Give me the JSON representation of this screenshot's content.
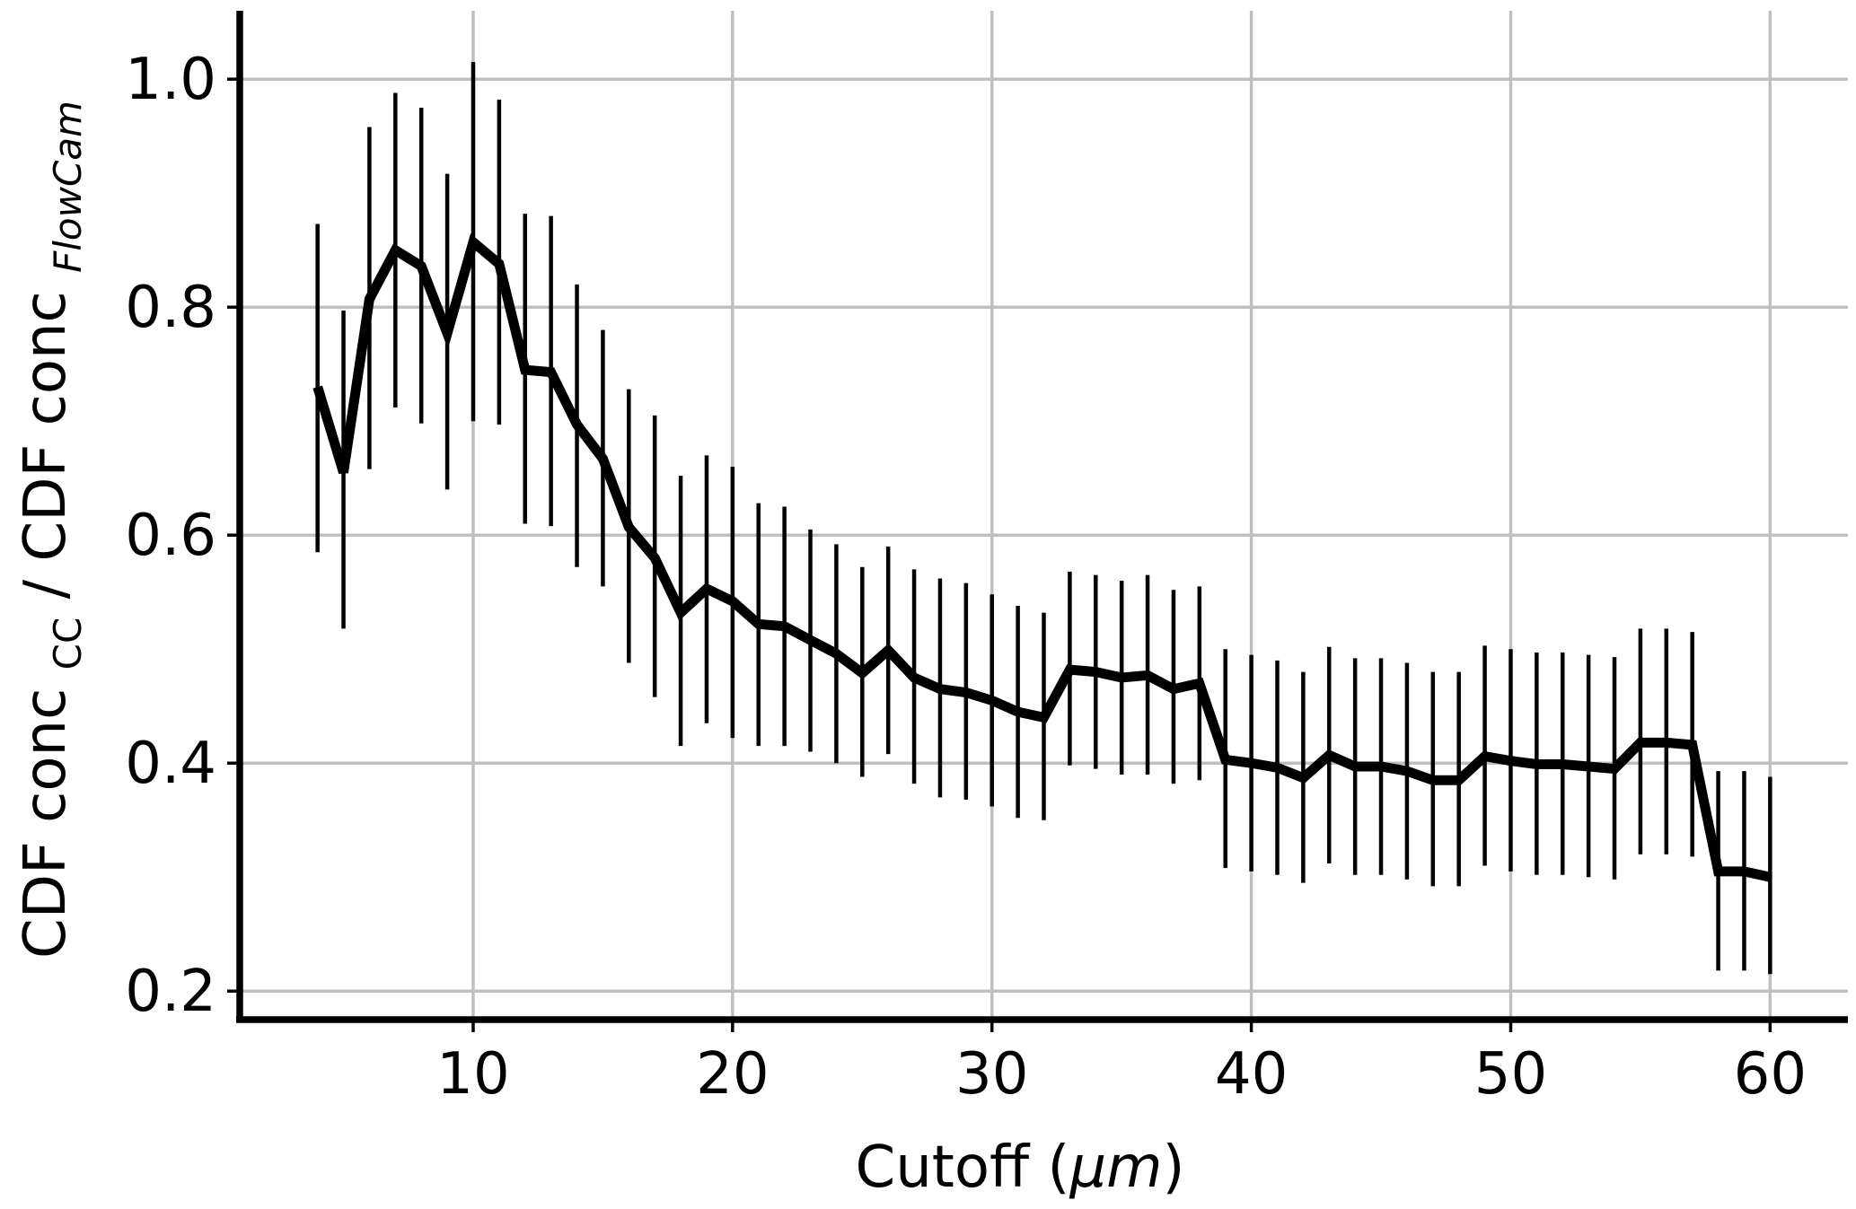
{
  "chart_data": {
    "type": "line",
    "title": "",
    "xlabel": {
      "text": "Cutoff (",
      "unit": "μm",
      "close": ")"
    },
    "ylabel": {
      "part1": "CDF conc ",
      "sub1": "CC",
      "part2": " / CDF conc ",
      "sub2": "FlowCam"
    },
    "xlim": [
      1,
      63
    ],
    "ylim": [
      0.175,
      1.06
    ],
    "xticks": [
      10,
      20,
      30,
      40,
      50,
      60
    ],
    "xtick_labels": [
      "10",
      "20",
      "30",
      "40",
      "50",
      "60"
    ],
    "yticks": [
      0.2,
      0.4,
      0.6,
      0.8,
      1.0
    ],
    "ytick_labels": [
      "0.2",
      "0.4",
      "0.6",
      "0.8",
      "1.0"
    ],
    "grid": true,
    "legend": "none",
    "series": [
      {
        "x": [
          4,
          5,
          6,
          7,
          8,
          9,
          10,
          11,
          12,
          13,
          14,
          15,
          16,
          17,
          18,
          19,
          20,
          21,
          22,
          23,
          24,
          25,
          26,
          27,
          28,
          29,
          30,
          31,
          32,
          33,
          34,
          35,
          36,
          37,
          38,
          39,
          40,
          41,
          42,
          43,
          44,
          45,
          46,
          47,
          48,
          49,
          50,
          51,
          52,
          53,
          54,
          55,
          56,
          57,
          58,
          59,
          60
        ],
        "y": [
          0.73,
          0.655,
          0.807,
          0.85,
          0.836,
          0.777,
          0.857,
          0.838,
          0.745,
          0.743,
          0.697,
          0.667,
          0.607,
          0.58,
          0.532,
          0.553,
          0.542,
          0.522,
          0.52,
          0.508,
          0.496,
          0.479,
          0.499,
          0.475,
          0.465,
          0.462,
          0.455,
          0.445,
          0.44,
          0.482,
          0.48,
          0.475,
          0.477,
          0.465,
          0.47,
          0.403,
          0.4,
          0.396,
          0.387,
          0.407,
          0.397,
          0.397,
          0.393,
          0.385,
          0.385,
          0.406,
          0.402,
          0.399,
          0.399,
          0.397,
          0.395,
          0.418,
          0.418,
          0.416,
          0.305,
          0.305,
          0.3
        ],
        "yerr_low": [
          0.585,
          0.518,
          0.658,
          0.712,
          0.698,
          0.64,
          0.7,
          0.697,
          0.61,
          0.608,
          0.572,
          0.555,
          0.488,
          0.458,
          0.415,
          0.435,
          0.422,
          0.415,
          0.415,
          0.41,
          0.4,
          0.388,
          0.408,
          0.382,
          0.37,
          0.368,
          0.362,
          0.352,
          0.35,
          0.398,
          0.395,
          0.39,
          0.39,
          0.382,
          0.385,
          0.308,
          0.305,
          0.302,
          0.295,
          0.312,
          0.302,
          0.302,
          0.298,
          0.292,
          0.292,
          0.31,
          0.305,
          0.302,
          0.302,
          0.3,
          0.298,
          0.32,
          0.32,
          0.318,
          0.218,
          0.218,
          0.215
        ],
        "yerr_high": [
          0.873,
          0.797,
          0.958,
          0.988,
          0.975,
          0.917,
          1.015,
          0.982,
          0.882,
          0.88,
          0.82,
          0.78,
          0.728,
          0.705,
          0.652,
          0.67,
          0.66,
          0.628,
          0.625,
          0.605,
          0.592,
          0.572,
          0.59,
          0.57,
          0.562,
          0.558,
          0.548,
          0.538,
          0.532,
          0.568,
          0.565,
          0.56,
          0.565,
          0.552,
          0.555,
          0.5,
          0.495,
          0.49,
          0.48,
          0.502,
          0.492,
          0.492,
          0.488,
          0.48,
          0.48,
          0.503,
          0.5,
          0.497,
          0.497,
          0.495,
          0.493,
          0.518,
          0.518,
          0.515,
          0.393,
          0.393,
          0.388
        ]
      }
    ]
  }
}
